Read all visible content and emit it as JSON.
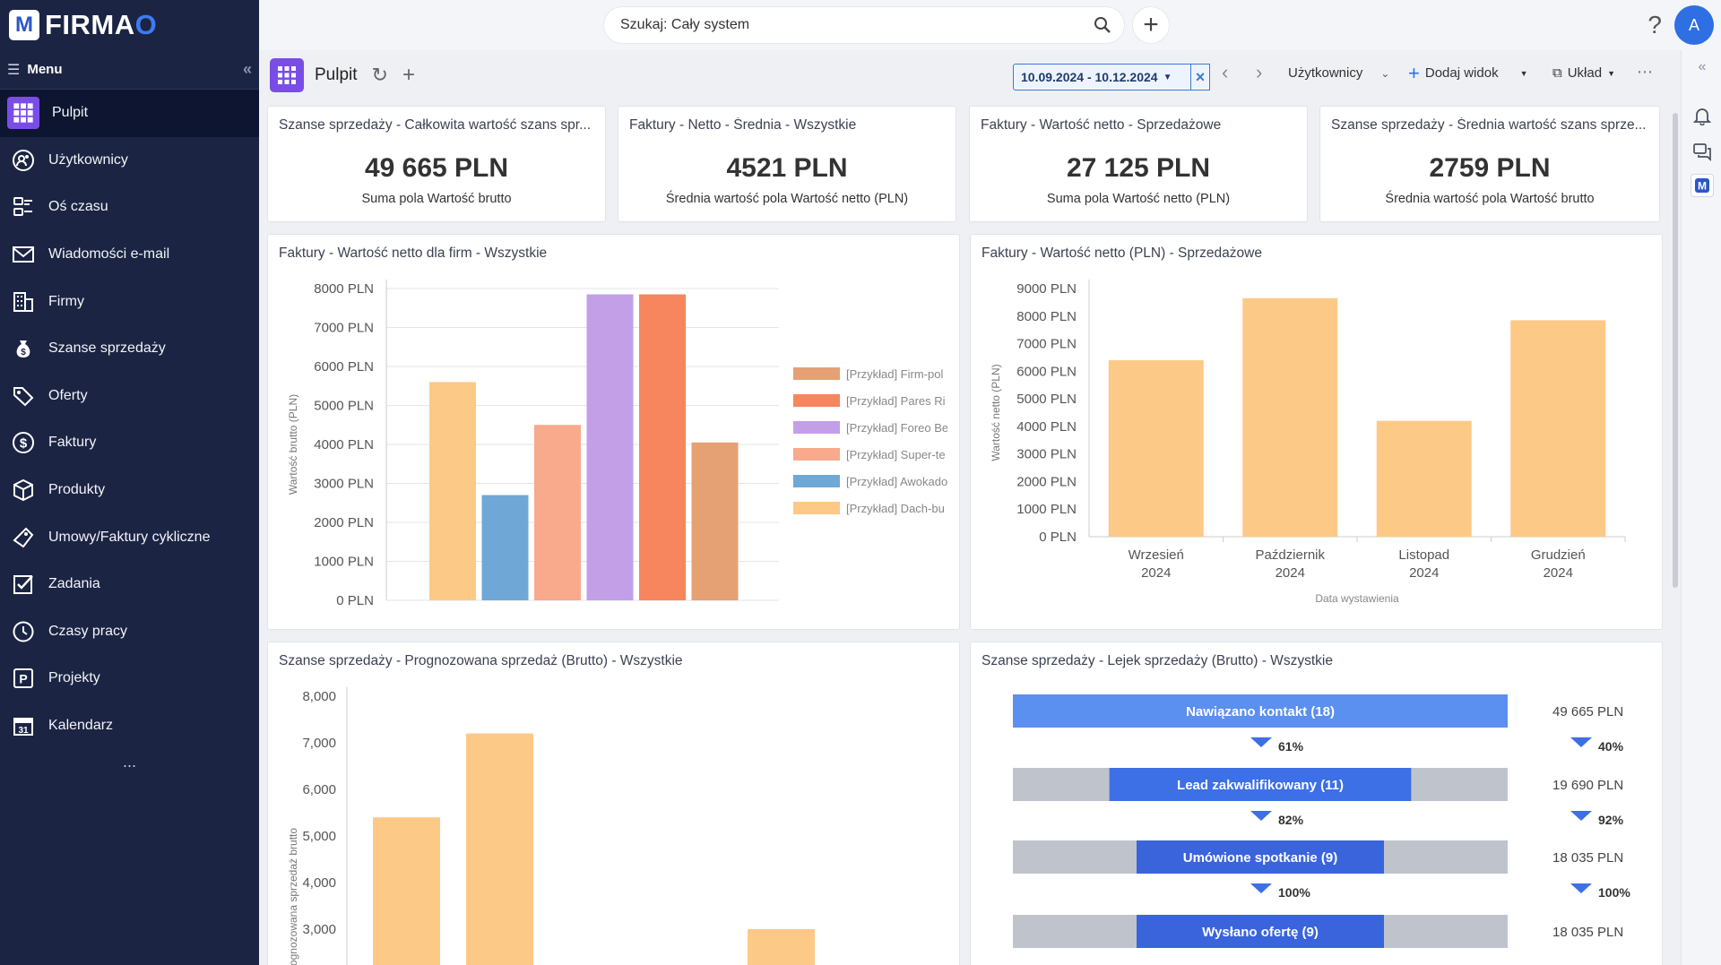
{
  "app": {
    "logo_mark": "M",
    "logo_text_main": "FIRMA",
    "logo_text_accent": "O"
  },
  "sidebar": {
    "menu_label": "Menu",
    "collapse_glyph": "«",
    "items": [
      {
        "label": "Pulpit",
        "icon": "grid-icon",
        "active": true
      },
      {
        "label": "Użytkownicy",
        "icon": "users-icon"
      },
      {
        "label": "Oś czasu",
        "icon": "timeline-icon"
      },
      {
        "label": "Wiadomości e-mail",
        "icon": "mail-icon"
      },
      {
        "label": "Firmy",
        "icon": "building-icon"
      },
      {
        "label": "Szanse sprzedaży",
        "icon": "money-bag-icon"
      },
      {
        "label": "Oferty",
        "icon": "tag-icon"
      },
      {
        "label": "Faktury",
        "icon": "dollar-icon"
      },
      {
        "label": "Produkty",
        "icon": "box-icon"
      },
      {
        "label": "Umowy/Faktury cykliczne",
        "icon": "contract-icon"
      },
      {
        "label": "Zadania",
        "icon": "checkbox-icon"
      },
      {
        "label": "Czasy pracy",
        "icon": "clock-icon"
      },
      {
        "label": "Projekty",
        "icon": "project-icon"
      },
      {
        "label": "Kalendarz",
        "icon": "calendar-icon"
      }
    ],
    "more_label": "..."
  },
  "topbar": {
    "search_placeholder": "Szukaj: Cały system",
    "avatar_letter": "A",
    "help_glyph": "?"
  },
  "toolbar": {
    "title": "Pulpit",
    "date_range": "10.09.2024 - 10.12.2024",
    "users_label": "Użytkownicy",
    "add_view_label": "Dodaj widok",
    "layout_label": "Układ",
    "more_label": "⋯"
  },
  "kpis": [
    {
      "title": "Szanse sprzedaży - Całkowita wartość szans spr...",
      "value": "49 665 PLN",
      "sub": "Suma pola Wartość brutto"
    },
    {
      "title": "Faktury - Netto - Średnia - Wszystkie",
      "value": "4521 PLN",
      "sub": "Średnia wartość pola Wartość netto (PLN)"
    },
    {
      "title": "Faktury - Wartość netto - Sprzedażowe",
      "value": "27 125 PLN",
      "sub": "Suma pola Wartość netto (PLN)"
    },
    {
      "title": "Szanse sprzedaży - Średnia wartość szans sprze...",
      "value": "2759 PLN",
      "sub": "Średnia wartość pola Wartość brutto"
    }
  ],
  "chart_data": [
    {
      "type": "bar",
      "title": "Faktury - Wartość netto dla firm - Wszystkie",
      "ylabel": "Wartość brutto (PLN)",
      "xlabel": "",
      "ylim": [
        0,
        8000
      ],
      "yticks": [
        "0 PLN",
        "1000 PLN",
        "2000 PLN",
        "3000 PLN",
        "4000 PLN",
        "5000 PLN",
        "6000 PLN",
        "7000 PLN",
        "8000 PLN"
      ],
      "series": [
        {
          "name": "[Przykład] Dach-bu",
          "value": 5600,
          "color": "#fdc987"
        },
        {
          "name": "[Przykład] Awokado",
          "value": 2700,
          "color": "#6fa8d6"
        },
        {
          "name": "[Przykład] Super-te",
          "value": 4500,
          "color": "#f9a98c"
        },
        {
          "name": "[Przykład] Foreo Be",
          "value": 7850,
          "color": "#c39fe8"
        },
        {
          "name": "[Przykład] Pares Ri",
          "value": 7850,
          "color": "#f7855d"
        },
        {
          "name": "[Przykład] Firm-pol",
          "value": 4050,
          "color": "#e5a174"
        }
      ],
      "legend_order": [
        "[Przykład] Firm-pol",
        "[Przykład] Pares Ri",
        "[Przykład] Foreo Be",
        "[Przykład] Super-te",
        "[Przykład] Awokado",
        "[Przykład] Dach-bu"
      ]
    },
    {
      "type": "bar",
      "title": "Faktury - Wartość netto (PLN) - Sprzedażowe",
      "ylabel": "Wartość netto (PLN)",
      "xlabel": "Data wystawienia",
      "ylim": [
        0,
        9000
      ],
      "yticks": [
        "0 PLN",
        "1000 PLN",
        "2000 PLN",
        "3000 PLN",
        "4000 PLN",
        "5000 PLN",
        "6000 PLN",
        "7000 PLN",
        "8000 PLN",
        "9000 PLN"
      ],
      "categories": [
        [
          "Wrzesień",
          "2024"
        ],
        [
          "Październik",
          "2024"
        ],
        [
          "Listopad",
          "2024"
        ],
        [
          "Grudzień",
          "2024"
        ]
      ],
      "values": [
        6400,
        8650,
        4200,
        7850
      ],
      "color": "#fdc987"
    },
    {
      "type": "bar",
      "title": "Szanse sprzedaży - Prognozowana sprzedaż (Brutto) - Wszystkie",
      "ylabel": "Prognozowana sprzedaż brutto",
      "xlabel": "",
      "ylim": [
        0,
        8000
      ],
      "yticks": [
        "3,000",
        "4,000",
        "5,000",
        "6,000",
        "7,000",
        "8,000"
      ],
      "ytick_values": [
        3000,
        4000,
        5000,
        6000,
        7000,
        8000
      ],
      "values": [
        5400,
        7200,
        0,
        3000
      ],
      "color": "#fdc987"
    },
    {
      "type": "funnel",
      "title": "Szanse sprzedaży - Lejek sprzedaży (Brutto) - Wszystkie",
      "stages": [
        {
          "label": "Nawiązano kontakt (18)",
          "value": "49 665 PLN",
          "ratio": 1.0
        },
        {
          "label": "Lead zakwalifikowany (11)",
          "value": "19 690 PLN",
          "ratio": 0.61
        },
        {
          "label": "Umówione spotkanie (9)",
          "value": "18 035 PLN",
          "ratio": 0.5
        },
        {
          "label": "Wysłano ofertę (9)",
          "value": "18 035 PLN",
          "ratio": 0.5
        }
      ],
      "conversions": [
        {
          "count_pct": "61%",
          "value_pct": "40%"
        },
        {
          "count_pct": "82%",
          "value_pct": "92%"
        },
        {
          "count_pct": "100%",
          "value_pct": "100%"
        }
      ]
    }
  ]
}
